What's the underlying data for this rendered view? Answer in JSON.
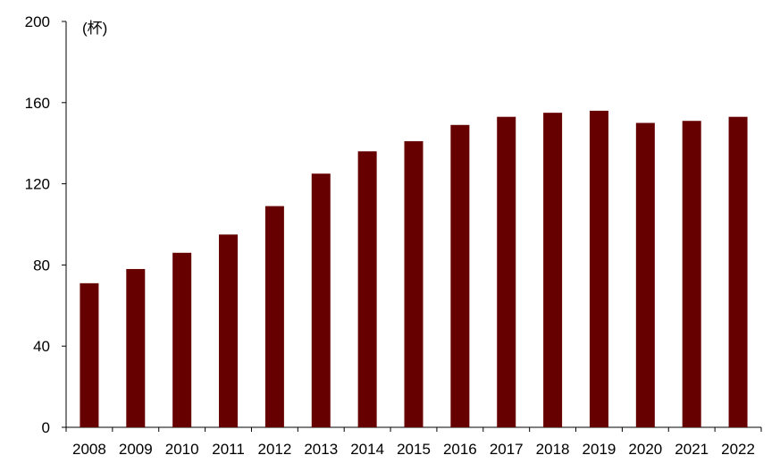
{
  "chart_data": {
    "type": "bar",
    "title": "",
    "xlabel": "",
    "ylabel": "(杯)",
    "categories": [
      "2008",
      "2009",
      "2010",
      "2011",
      "2012",
      "2013",
      "2014",
      "2015",
      "2016",
      "2017",
      "2018",
      "2019",
      "2020",
      "2021",
      "2022"
    ],
    "values": [
      71,
      78,
      86,
      95,
      109,
      125,
      136,
      141,
      149,
      153,
      155,
      156,
      150,
      151,
      153
    ],
    "ylim": [
      0,
      200
    ],
    "yticks": [
      0,
      40,
      80,
      120,
      160,
      200
    ],
    "grid": false,
    "legend": "none",
    "bar_color": "#660000"
  }
}
